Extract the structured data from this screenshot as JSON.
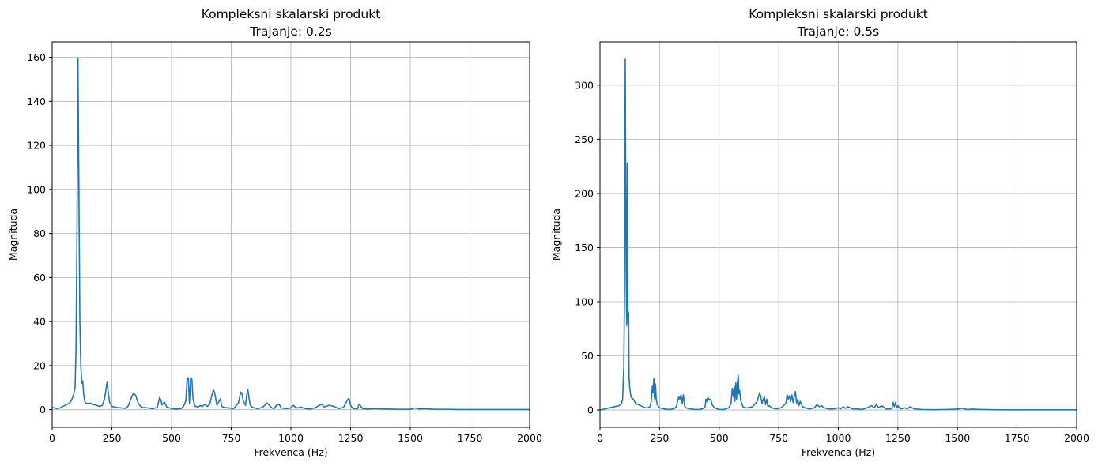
{
  "colors": {
    "line": "#1f77b4",
    "grid": "#b0b0b0",
    "axes": "#000000"
  },
  "chart_data": [
    {
      "type": "line",
      "title": "Kompleksni skalarski produkt",
      "subtitle": "Trajanje: 0.2s",
      "xlabel": "Frekvenca (Hz)",
      "ylabel": "Magnituda",
      "xlim": [
        0,
        2000
      ],
      "ylim": [
        -8,
        167
      ],
      "xticks": [
        0,
        250,
        500,
        750,
        1000,
        1250,
        1500,
        1750,
        2000
      ],
      "yticks": [
        0,
        20,
        40,
        60,
        80,
        100,
        120,
        140,
        160
      ],
      "grid": true,
      "series": [
        {
          "x": [
            0,
            10,
            20,
            30,
            40,
            50,
            60,
            70,
            80,
            90,
            96,
            100,
            104,
            108,
            112,
            116,
            120,
            124,
            128,
            132,
            136,
            140,
            150,
            160,
            170,
            180,
            190,
            200,
            210,
            220,
            225,
            230,
            235,
            240,
            250,
            270,
            290,
            310,
            320,
            330,
            340,
            350,
            360,
            370,
            380,
            400,
            420,
            440,
            450,
            455,
            460,
            470,
            480,
            500,
            520,
            540,
            550,
            560,
            565,
            570,
            575,
            580,
            585,
            590,
            595,
            600,
            610,
            620,
            630,
            640,
            650,
            660,
            670,
            675,
            680,
            690,
            700,
            705,
            710,
            720,
            740,
            760,
            780,
            790,
            795,
            800,
            810,
            815,
            820,
            825,
            830,
            840,
            860,
            880,
            890,
            900,
            910,
            920,
            930,
            940,
            950,
            960,
            980,
            1000,
            1010,
            1020,
            1030,
            1040,
            1060,
            1080,
            1100,
            1120,
            1130,
            1140,
            1160,
            1180,
            1200,
            1220,
            1230,
            1240,
            1245,
            1250,
            1260,
            1280,
            1285,
            1290,
            1300,
            1320,
            1350,
            1400,
            1450,
            1500,
            1520,
            1540,
            1560,
            1600,
            1650,
            1700,
            1750,
            1800,
            1850,
            1900,
            1950,
            2000
          ],
          "y": [
            1,
            0.8,
            0.5,
            0.7,
            1.2,
            1.8,
            2.3,
            2.8,
            4,
            7,
            10,
            28,
            80,
            159.5,
            100,
            40,
            20,
            12,
            13,
            7,
            4,
            3,
            2.8,
            3,
            2.4,
            2.2,
            1.8,
            1.5,
            2,
            5,
            9,
            12.5,
            8,
            3.5,
            1.5,
            1,
            0.8,
            0.6,
            2,
            5,
            7.5,
            6.5,
            3,
            1.5,
            1,
            0.8,
            0.5,
            1,
            5.5,
            4.5,
            2.2,
            3.5,
            1.2,
            0.5,
            0.3,
            0.5,
            1.5,
            4,
            13.5,
            14.5,
            3,
            14.5,
            14,
            5,
            2.5,
            1.5,
            1.2,
            1.8,
            1.5,
            2.5,
            1.5,
            2.5,
            7,
            9,
            8,
            2,
            4,
            5,
            1.5,
            1,
            0.8,
            0.5,
            3,
            8,
            7.5,
            4,
            2,
            7,
            9,
            5,
            2,
            1,
            0.5,
            1,
            2,
            3,
            2,
            0.8,
            0.5,
            2,
            2.5,
            0.8,
            0.5,
            0.8,
            2,
            1,
            0.8,
            1.2,
            0.5,
            0.3,
            0.8,
            2,
            2.5,
            1.2,
            2,
            1.5,
            0.5,
            1,
            3,
            5,
            4.5,
            2,
            0.5,
            0.5,
            2.5,
            2,
            0.5,
            0.3,
            0.5,
            0.3,
            0.2,
            0.2,
            0.8,
            0.3,
            0.5,
            0.2,
            0.2,
            0.1,
            0.1,
            0.1,
            0.1,
            0.1,
            0.1,
            0.1
          ]
        }
      ]
    },
    {
      "type": "line",
      "title": "Kompleksni skalarski produkt",
      "subtitle": "Trajanje: 0.5s",
      "xlabel": "Frekvenca (Hz)",
      "ylabel": "Magnituda",
      "xlim": [
        0,
        2000
      ],
      "ylim": [
        -16,
        340
      ],
      "xticks": [
        0,
        250,
        500,
        750,
        1000,
        1250,
        1500,
        1750,
        2000
      ],
      "yticks": [
        0,
        50,
        100,
        150,
        200,
        250,
        300
      ],
      "grid": true,
      "series": [
        {
          "x": [
            0,
            20,
            40,
            60,
            70,
            80,
            90,
            95,
            100,
            103,
            106,
            108,
            110,
            112,
            114,
            116,
            118,
            120,
            122,
            125,
            130,
            140,
            150,
            160,
            170,
            180,
            190,
            200,
            210,
            215,
            220,
            223,
            226,
            228,
            230,
            233,
            236,
            240,
            250,
            270,
            290,
            310,
            320,
            330,
            335,
            340,
            345,
            350,
            355,
            360,
            380,
            400,
            420,
            440,
            445,
            450,
            455,
            460,
            465,
            470,
            480,
            500,
            520,
            540,
            550,
            555,
            560,
            563,
            566,
            570,
            573,
            576,
            580,
            583,
            586,
            590,
            595,
            600,
            610,
            620,
            640,
            660,
            670,
            675,
            680,
            685,
            690,
            695,
            700,
            705,
            710,
            720,
            740,
            760,
            780,
            785,
            790,
            795,
            800,
            805,
            810,
            815,
            820,
            825,
            830,
            835,
            840,
            850,
            860,
            880,
            900,
            910,
            920,
            930,
            940,
            960,
            980,
            1000,
            1010,
            1020,
            1030,
            1040,
            1050,
            1060,
            1080,
            1100,
            1120,
            1130,
            1140,
            1150,
            1160,
            1170,
            1180,
            1200,
            1220,
            1225,
            1230,
            1235,
            1240,
            1245,
            1250,
            1260,
            1280,
            1290,
            1300,
            1320,
            1350,
            1400,
            1450,
            1500,
            1520,
            1540,
            1560,
            1600,
            1650,
            1700,
            1750,
            1800,
            1850,
            1900,
            1950,
            2000
          ],
          "y": [
            0,
            1,
            2,
            3,
            3.5,
            4,
            6,
            10,
            40,
            110,
            324,
            200,
            120,
            78,
            228,
            110,
            80,
            90,
            30,
            20,
            12,
            10,
            6,
            5,
            4,
            3,
            2,
            2,
            3,
            8,
            22,
            16,
            29,
            12,
            10,
            24,
            10,
            5,
            2,
            1,
            0.5,
            1,
            3,
            12,
            10,
            14,
            6,
            14,
            4,
            2,
            1,
            0.5,
            0.5,
            2,
            10,
            7,
            11,
            9,
            10,
            5,
            2,
            0.5,
            0.5,
            2,
            6,
            20,
            12,
            22,
            8,
            25,
            10,
            24,
            32,
            15,
            18,
            9,
            6,
            3,
            2,
            2,
            3,
            8,
            16,
            12,
            6,
            10,
            12,
            5,
            10,
            3,
            4,
            2,
            1,
            2,
            6,
            14,
            10,
            13,
            8,
            14,
            7,
            12,
            17,
            6,
            10,
            4,
            8,
            3,
            2,
            1,
            2,
            5,
            3,
            4,
            2,
            1,
            1,
            2,
            1,
            3,
            1.5,
            3,
            2,
            1,
            1,
            0.5,
            2,
            3,
            4,
            2,
            5,
            2,
            4,
            1,
            1,
            2,
            7,
            3,
            7,
            2,
            4,
            1,
            2,
            1,
            3,
            1,
            0.5,
            0.3,
            0.5,
            0.8,
            1.5,
            0.5,
            0.8,
            0.5,
            0.3,
            0.2,
            0.2,
            0.2,
            0.2,
            0.2,
            0.2,
            0.2
          ]
        }
      ]
    }
  ]
}
